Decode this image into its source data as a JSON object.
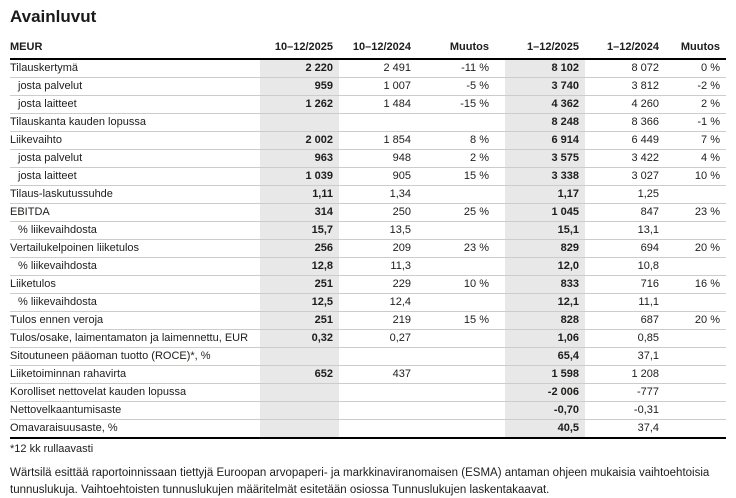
{
  "page": {
    "title": "Avainluvut"
  },
  "colors": {
    "shade": "#e8e8e8",
    "row_border": "#cccccc",
    "strong_border": "#000000",
    "text": "#1d1d1b"
  },
  "table": {
    "columns": [
      "MEUR",
      "10–12/2025",
      "10–12/2024",
      "Muutos",
      "1–12/2025",
      "1–12/2024",
      "Muutos"
    ],
    "rows": [
      {
        "label": "Tilauskertymä",
        "indent": false,
        "values": [
          "2 220",
          "2 491",
          "-11 %",
          "8 102",
          "8 072",
          "0 %"
        ]
      },
      {
        "label": "josta palvelut",
        "indent": true,
        "values": [
          "959",
          "1 007",
          "-5 %",
          "3 740",
          "3 812",
          "-2 %"
        ]
      },
      {
        "label": "josta laitteet",
        "indent": true,
        "values": [
          "1 262",
          "1 484",
          "-15 %",
          "4 362",
          "4 260",
          "2 %"
        ]
      },
      {
        "label": "Tilauskanta kauden lopussa",
        "indent": false,
        "values": [
          "",
          "",
          "",
          "8 248",
          "8 366",
          "-1 %"
        ]
      },
      {
        "label": "Liikevaihto",
        "indent": false,
        "values": [
          "2 002",
          "1 854",
          "8 %",
          "6 914",
          "6 449",
          "7 %"
        ]
      },
      {
        "label": "josta palvelut",
        "indent": true,
        "values": [
          "963",
          "948",
          "2 %",
          "3 575",
          "3 422",
          "4 %"
        ]
      },
      {
        "label": "josta laitteet",
        "indent": true,
        "values": [
          "1 039",
          "905",
          "15 %",
          "3 338",
          "3 027",
          "10 %"
        ]
      },
      {
        "label": "Tilaus-laskutussuhde",
        "indent": false,
        "values": [
          "1,11",
          "1,34",
          "",
          "1,17",
          "1,25",
          ""
        ]
      },
      {
        "label": "EBITDA",
        "indent": false,
        "values": [
          "314",
          "250",
          "25 %",
          "1 045",
          "847",
          "23 %"
        ]
      },
      {
        "label": "% liikevaihdosta",
        "indent": true,
        "values": [
          "15,7",
          "13,5",
          "",
          "15,1",
          "13,1",
          ""
        ]
      },
      {
        "label": "Vertailukelpoinen liiketulos",
        "indent": false,
        "values": [
          "256",
          "209",
          "23 %",
          "829",
          "694",
          "20 %"
        ]
      },
      {
        "label": "% liikevaihdosta",
        "indent": true,
        "values": [
          "12,8",
          "11,3",
          "",
          "12,0",
          "10,8",
          ""
        ]
      },
      {
        "label": "Liiketulos",
        "indent": false,
        "values": [
          "251",
          "229",
          "10 %",
          "833",
          "716",
          "16 %"
        ]
      },
      {
        "label": "% liikevaihdosta",
        "indent": true,
        "values": [
          "12,5",
          "12,4",
          "",
          "12,1",
          "11,1",
          ""
        ]
      },
      {
        "label": "Tulos ennen veroja",
        "indent": false,
        "values": [
          "251",
          "219",
          "15 %",
          "828",
          "687",
          "20 %"
        ]
      },
      {
        "label": "Tulos/osake, laimentamaton ja laimennettu, EUR",
        "indent": false,
        "values": [
          "0,32",
          "0,27",
          "",
          "1,06",
          "0,85",
          ""
        ]
      },
      {
        "label": "Sitoutuneen pääoman tuotto (ROCE)*, %",
        "indent": false,
        "values": [
          "",
          "",
          "",
          "65,4",
          "37,1",
          ""
        ]
      },
      {
        "label": "Liiketoiminnan rahavirta",
        "indent": false,
        "values": [
          "652",
          "437",
          "",
          "1 598",
          "1 208",
          ""
        ]
      },
      {
        "label": "Korolliset nettovelat kauden lopussa",
        "indent": false,
        "values": [
          "",
          "",
          "",
          "-2 006",
          "-777",
          ""
        ]
      },
      {
        "label": "Nettovelkaantumisaste",
        "indent": false,
        "values": [
          "",
          "",
          "",
          "-0,70",
          "-0,31",
          ""
        ]
      },
      {
        "label": "Omavaraisuusaste, %",
        "indent": false,
        "values": [
          "",
          "",
          "",
          "40,5",
          "37,4",
          ""
        ]
      }
    ],
    "footnote": "*12 kk rullaavasti"
  },
  "disclaimer": "Wärtsilä esittää raportoinnissaan tiettyjä Euroopan arvopaperi- ja markkinaviranomaisen (ESMA) antaman ohjeen mukaisia vaihtoehtoisia tunnuslukuja. Vaihtoehtoisten tunnuslukujen määritelmät esitetään osiossa Tunnuslukujen laskentakaavat."
}
